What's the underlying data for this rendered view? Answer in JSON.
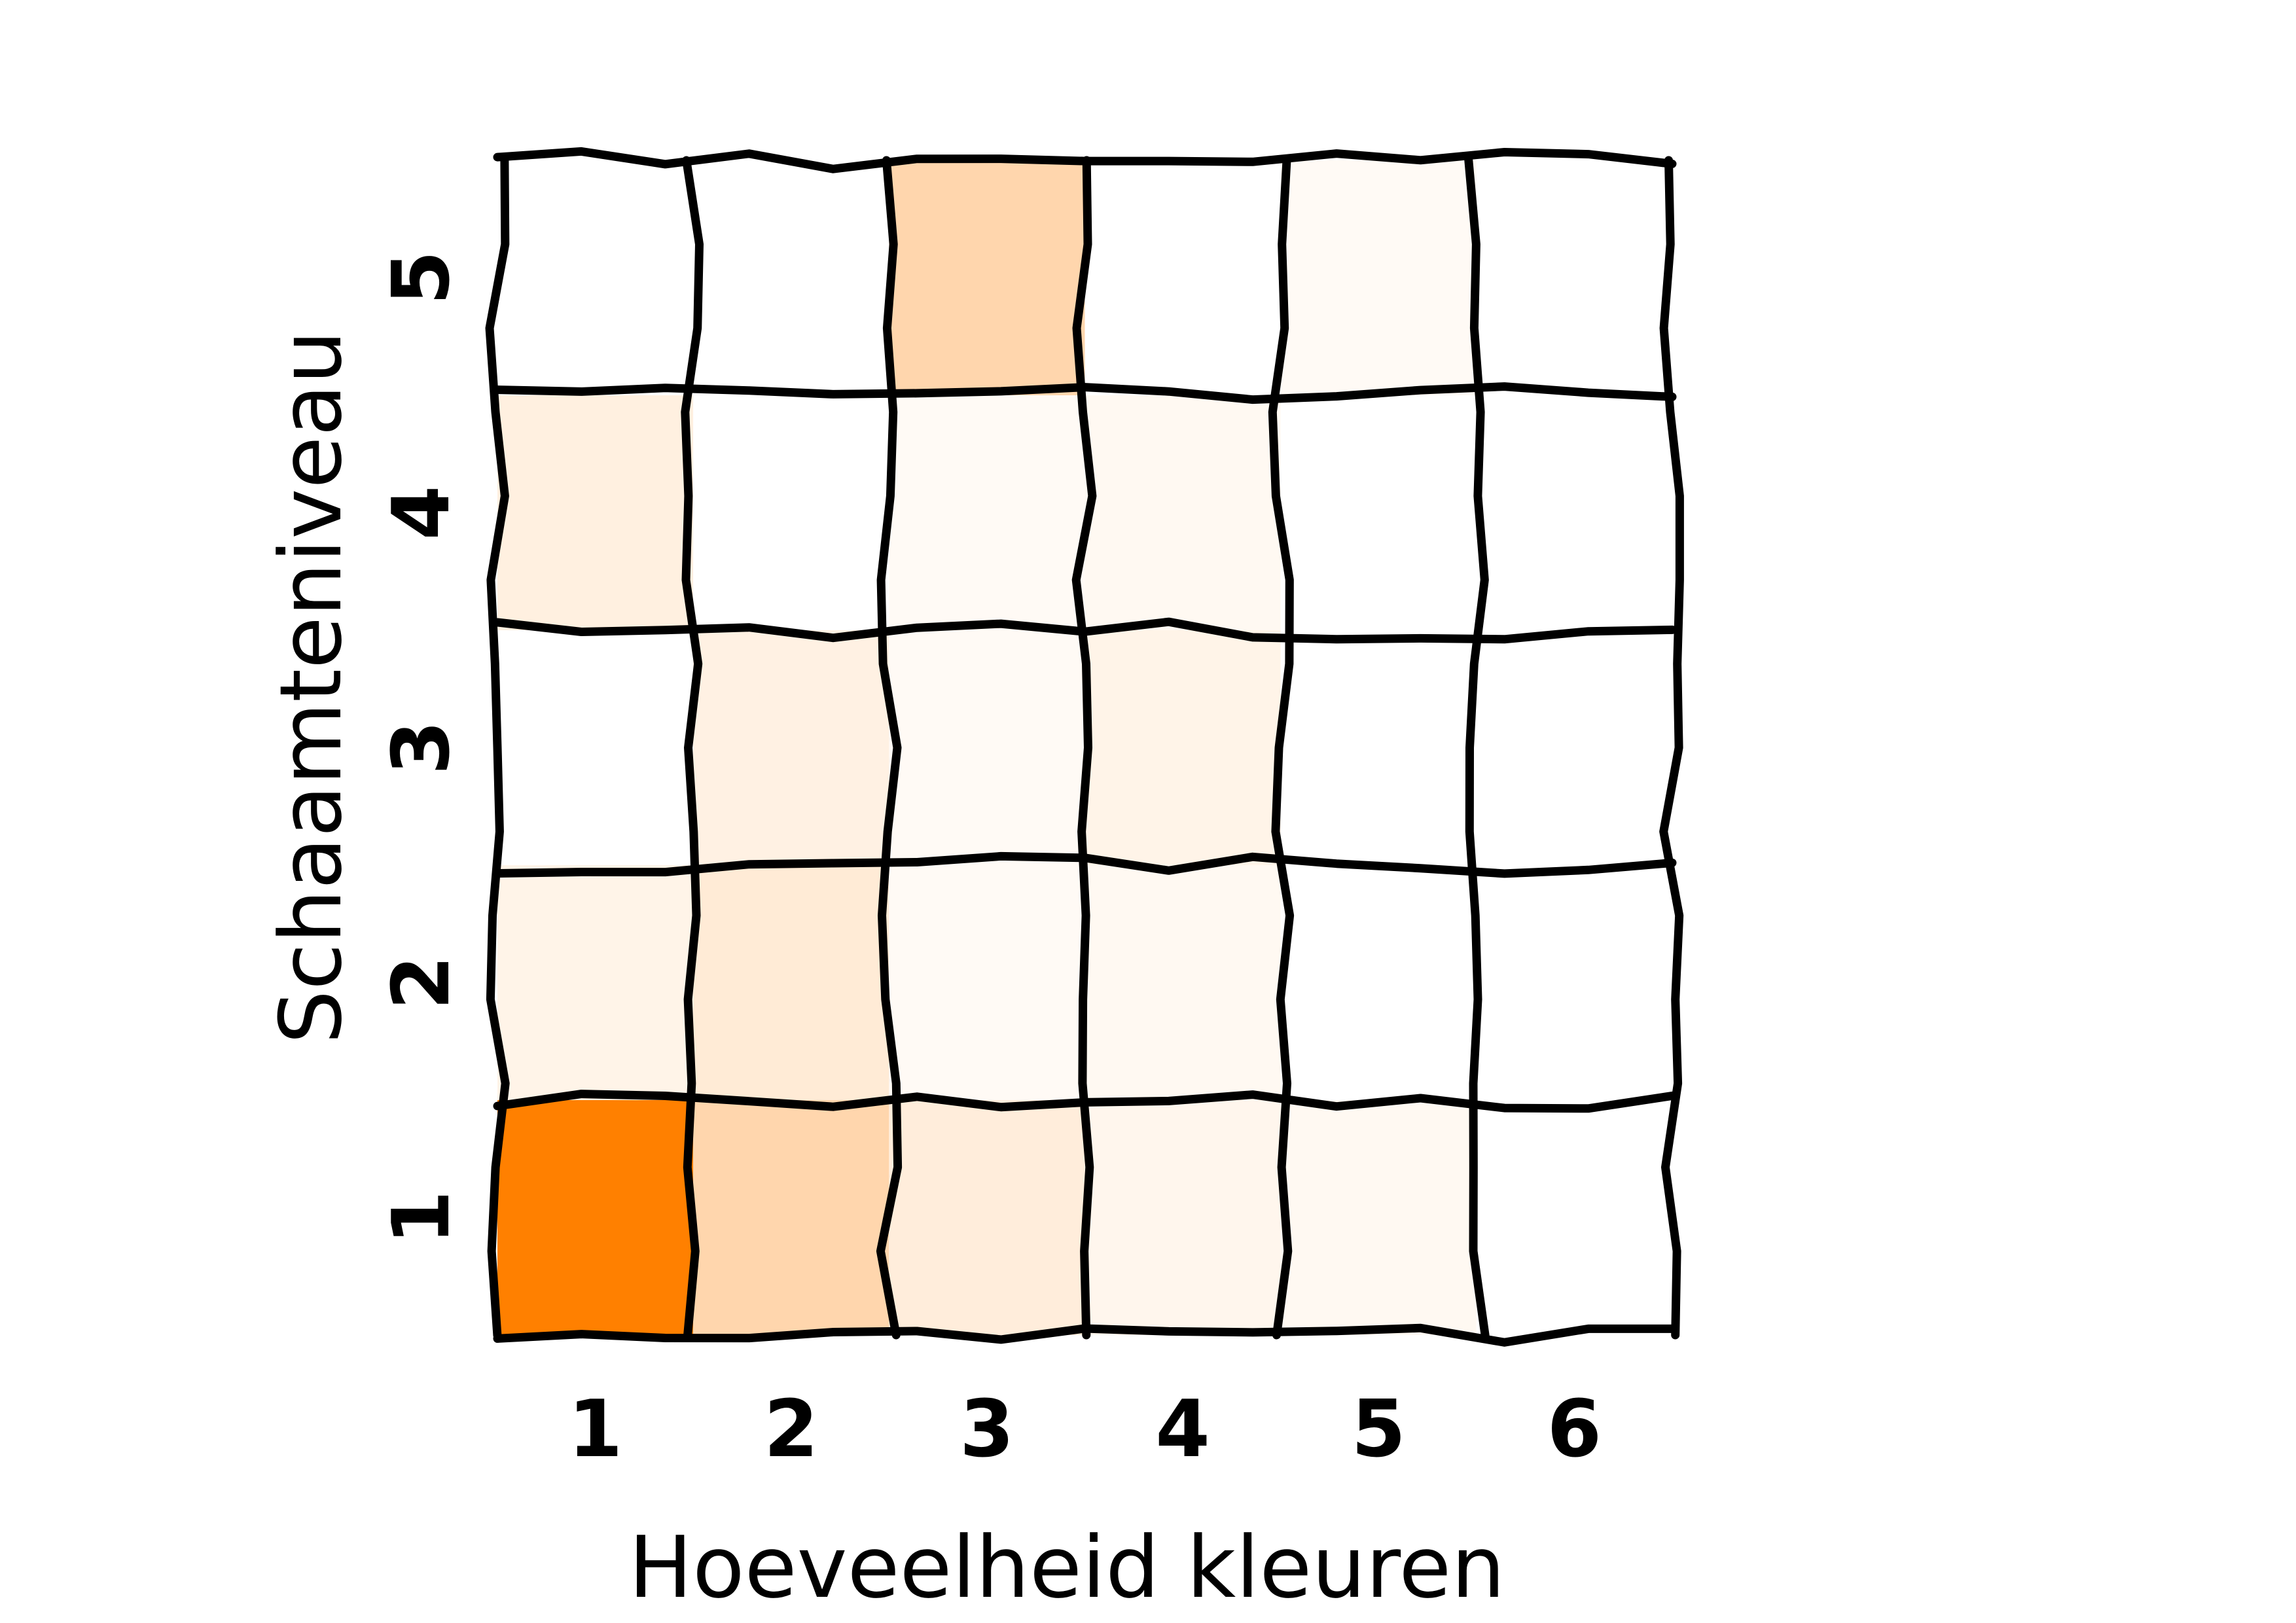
{
  "chart_data": {
    "type": "heatmap",
    "title": "",
    "xlabel": "Hoeveelheid kleuren",
    "ylabel": "Schaamteniveau",
    "x_categories": [
      "1",
      "2",
      "3",
      "4",
      "5",
      "6"
    ],
    "y_categories": [
      "1",
      "2",
      "3",
      "4",
      "5"
    ],
    "values": [
      [
        1.0,
        0.32,
        0.14,
        0.07,
        0.05,
        0.0
      ],
      [
        0.09,
        0.16,
        0.04,
        0.05,
        0.0,
        0.0
      ],
      [
        0.0,
        0.11,
        0.04,
        0.09,
        0.0,
        0.0
      ],
      [
        0.12,
        0.0,
        0.04,
        0.05,
        0.0,
        0.0
      ],
      [
        0.0,
        0.0,
        0.32,
        0.0,
        0.04,
        0.0
      ]
    ],
    "value_range": [
      0,
      1
    ],
    "colormap": [
      "#ffffff",
      "#ff8000"
    ],
    "grid": true,
    "legend": "none"
  }
}
